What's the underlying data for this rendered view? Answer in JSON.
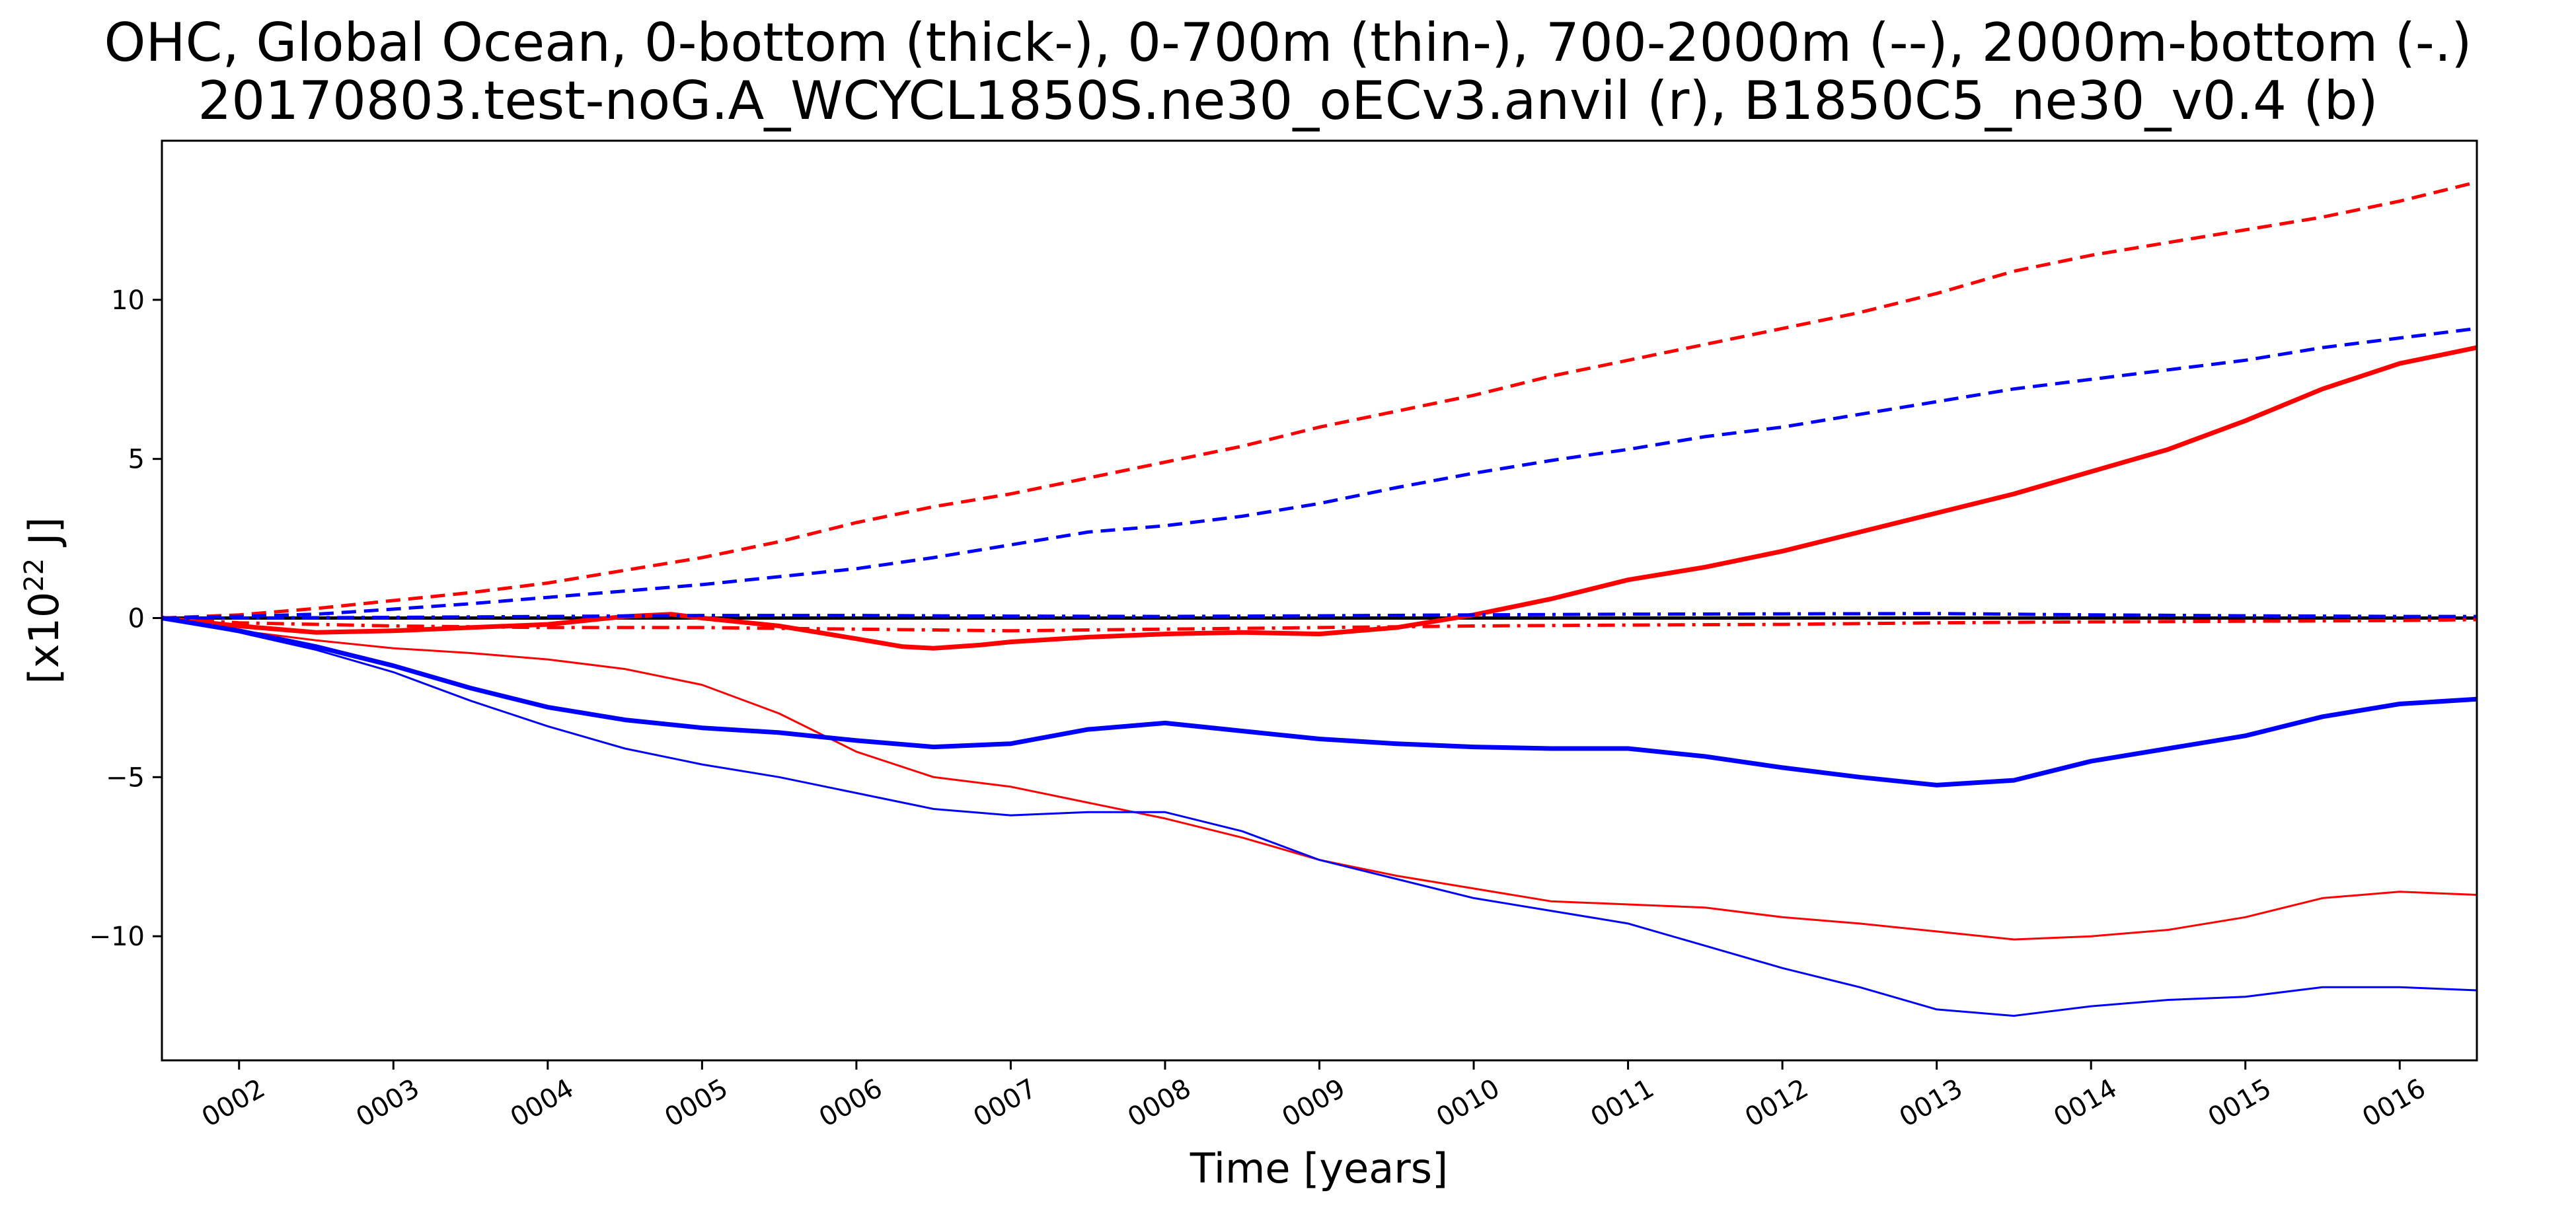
{
  "chart_data": {
    "type": "line",
    "title_line1": "OHC, Global Ocean, 0-bottom (thick-), 0-700m (thin-), 700-2000m (--), 2000m-bottom (-.)",
    "title_line2": "20170803.test-noG.A_WCYCL1850S.ne30_oECv3.anvil (r), B1850C5_ne30_v0.4 (b)",
    "xlabel": "Time [years]",
    "ylabel_base": "[x10",
    "ylabel_exp": "22",
    "ylabel_unit": " J]",
    "xlim": [
      1.5,
      16.5
    ],
    "ylim": [
      -13.9,
      15
    ],
    "xticks": [
      {
        "v": 2,
        "label": "0002"
      },
      {
        "v": 3,
        "label": "0003"
      },
      {
        "v": 4,
        "label": "0004"
      },
      {
        "v": 5,
        "label": "0005"
      },
      {
        "v": 6,
        "label": "0006"
      },
      {
        "v": 7,
        "label": "0007"
      },
      {
        "v": 8,
        "label": "0008"
      },
      {
        "v": 9,
        "label": "0009"
      },
      {
        "v": 10,
        "label": "0010"
      },
      {
        "v": 11,
        "label": "0011"
      },
      {
        "v": 12,
        "label": "0012"
      },
      {
        "v": 13,
        "label": "0013"
      },
      {
        "v": 14,
        "label": "0014"
      },
      {
        "v": 15,
        "label": "0015"
      },
      {
        "v": 16,
        "label": "0016"
      }
    ],
    "yticks": [
      {
        "v": -10,
        "label": "−10"
      },
      {
        "v": -5,
        "label": "−5"
      },
      {
        "v": 0,
        "label": "0"
      },
      {
        "v": 5,
        "label": "5"
      },
      {
        "v": 10,
        "label": "10"
      }
    ],
    "zero_line_color": "#000000",
    "series": [
      {
        "color": "#ff0000",
        "style": "solid",
        "width": 7,
        "x": [
          1.5,
          2,
          2.5,
          3,
          3.5,
          4,
          4.5,
          4.8,
          5,
          5.5,
          6,
          6.3,
          6.5,
          6.8,
          7,
          7.5,
          8,
          8.5,
          9,
          9.5,
          10,
          10.5,
          11,
          11.5,
          12,
          12.5,
          13,
          13.5,
          14,
          14.5,
          15,
          15.5,
          16,
          16.5
        ],
        "y": [
          0,
          -0.25,
          -0.45,
          -0.4,
          -0.3,
          -0.2,
          0.05,
          0.12,
          0,
          -0.25,
          -0.65,
          -0.9,
          -0.95,
          -0.85,
          -0.75,
          -0.6,
          -0.5,
          -0.45,
          -0.5,
          -0.3,
          0.1,
          0.6,
          1.2,
          1.6,
          2.1,
          2.7,
          3.3,
          3.9,
          4.6,
          5.3,
          6.2,
          7.2,
          8,
          8.5
        ]
      },
      {
        "color": "#ff0000",
        "style": "solid",
        "width": 3,
        "x": [
          1.5,
          2,
          2.5,
          3,
          3.5,
          4,
          4.5,
          5,
          5.5,
          6,
          6.5,
          7,
          7.5,
          8,
          8.5,
          9,
          9.5,
          10,
          10.5,
          11,
          11.5,
          12,
          12.5,
          13,
          13.5,
          14,
          14.5,
          15,
          15.5,
          16,
          16.5
        ],
        "y": [
          0,
          -0.4,
          -0.7,
          -0.95,
          -1.1,
          -1.3,
          -1.6,
          -2.1,
          -3,
          -4.2,
          -5,
          -5.3,
          -5.8,
          -6.3,
          -6.9,
          -7.6,
          -8.1,
          -8.5,
          -8.9,
          -9,
          -9.1,
          -9.4,
          -9.6,
          -9.85,
          -10.1,
          -10,
          -9.8,
          -9.4,
          -8.8,
          -8.6,
          -8.7
        ]
      },
      {
        "color": "#ff0000",
        "style": "dashed",
        "width": 5,
        "x": [
          1.5,
          2,
          2.5,
          3,
          3.5,
          4,
          4.5,
          5,
          5.5,
          6,
          6.5,
          7,
          7.5,
          8,
          8.5,
          9,
          9.5,
          10,
          10.5,
          11,
          11.5,
          12,
          12.5,
          13,
          13.5,
          14,
          14.5,
          15,
          15.5,
          16,
          16.5
        ],
        "y": [
          0,
          0.1,
          0.3,
          0.55,
          0.8,
          1.1,
          1.5,
          1.9,
          2.4,
          3,
          3.5,
          3.9,
          4.4,
          4.9,
          5.4,
          6,
          6.5,
          7,
          7.6,
          8.1,
          8.6,
          9.1,
          9.6,
          10.2,
          10.9,
          11.4,
          11.8,
          12.2,
          12.6,
          13.1,
          13.7
        ]
      },
      {
        "color": "#ff0000",
        "style": "dashdot",
        "width": 5,
        "x": [
          1.5,
          2,
          3,
          4,
          5,
          6,
          7,
          8,
          9,
          10,
          11,
          12,
          13,
          14,
          15,
          16,
          16.5
        ],
        "y": [
          0,
          -0.15,
          -0.25,
          -0.3,
          -0.3,
          -0.35,
          -0.4,
          -0.35,
          -0.3,
          -0.25,
          -0.22,
          -0.2,
          -0.15,
          -0.12,
          -0.1,
          -0.08,
          -0.05
        ]
      },
      {
        "color": "#0000ff",
        "style": "solid",
        "width": 7,
        "x": [
          1.5,
          2,
          2.5,
          3,
          3.5,
          4,
          4.5,
          5,
          5.5,
          6,
          6.5,
          7,
          7.5,
          8,
          8.5,
          9,
          9.5,
          10,
          10.5,
          11,
          11.5,
          12,
          12.5,
          13,
          13.5,
          14,
          14.5,
          15,
          15.5,
          16,
          16.5
        ],
        "y": [
          0,
          -0.4,
          -0.9,
          -1.5,
          -2.2,
          -2.8,
          -3.2,
          -3.45,
          -3.6,
          -3.85,
          -4.05,
          -3.95,
          -3.5,
          -3.3,
          -3.55,
          -3.8,
          -3.95,
          -4.05,
          -4.1,
          -4.1,
          -4.35,
          -4.7,
          -5,
          -5.25,
          -5.1,
          -4.5,
          -4.1,
          -3.7,
          -3.1,
          -2.7,
          -2.55
        ]
      },
      {
        "color": "#0000ff",
        "style": "solid",
        "width": 3,
        "x": [
          1.5,
          2,
          2.5,
          3,
          3.5,
          4,
          4.5,
          5,
          5.5,
          6,
          6.5,
          7,
          7.5,
          8,
          8.5,
          9,
          9.5,
          10,
          10.5,
          11,
          11.5,
          12,
          12.5,
          13,
          13.5,
          14,
          14.5,
          15,
          15.5,
          16,
          16.5
        ],
        "y": [
          0,
          -0.45,
          -1,
          -1.7,
          -2.6,
          -3.4,
          -4.1,
          -4.6,
          -5,
          -5.5,
          -6,
          -6.2,
          -6.1,
          -6.1,
          -6.7,
          -7.6,
          -8.2,
          -8.8,
          -9.2,
          -9.6,
          -10.3,
          -11,
          -11.6,
          -12.3,
          -12.5,
          -12.2,
          -12,
          -11.9,
          -11.6,
          -11.6,
          -11.7
        ]
      },
      {
        "color": "#0000ff",
        "style": "dashed",
        "width": 5,
        "x": [
          1.5,
          2,
          2.5,
          3,
          3.5,
          4,
          4.5,
          5,
          5.5,
          6,
          6.5,
          7,
          7.5,
          8,
          8.5,
          9,
          9.5,
          10,
          10.5,
          11,
          11.5,
          12,
          12.5,
          13,
          13.5,
          14,
          14.5,
          15,
          15.5,
          16,
          16.5
        ],
        "y": [
          0,
          0.05,
          0.12,
          0.28,
          0.45,
          0.65,
          0.85,
          1.05,
          1.3,
          1.55,
          1.9,
          2.3,
          2.7,
          2.9,
          3.2,
          3.6,
          4.1,
          4.55,
          4.95,
          5.3,
          5.7,
          6,
          6.4,
          6.8,
          7.2,
          7.5,
          7.8,
          8.1,
          8.5,
          8.8,
          9.1
        ]
      },
      {
        "color": "#0000ff",
        "style": "dashdot",
        "width": 5,
        "x": [
          1.5,
          2,
          3,
          4,
          5,
          6,
          7,
          8,
          9,
          10,
          11,
          12,
          13,
          14,
          15,
          16,
          16.5
        ],
        "y": [
          0,
          0,
          0.02,
          0.05,
          0.08,
          0.08,
          0.06,
          0.05,
          0.07,
          0.1,
          0.12,
          0.13,
          0.14,
          0.1,
          0.07,
          0.05,
          0.05
        ]
      }
    ]
  }
}
